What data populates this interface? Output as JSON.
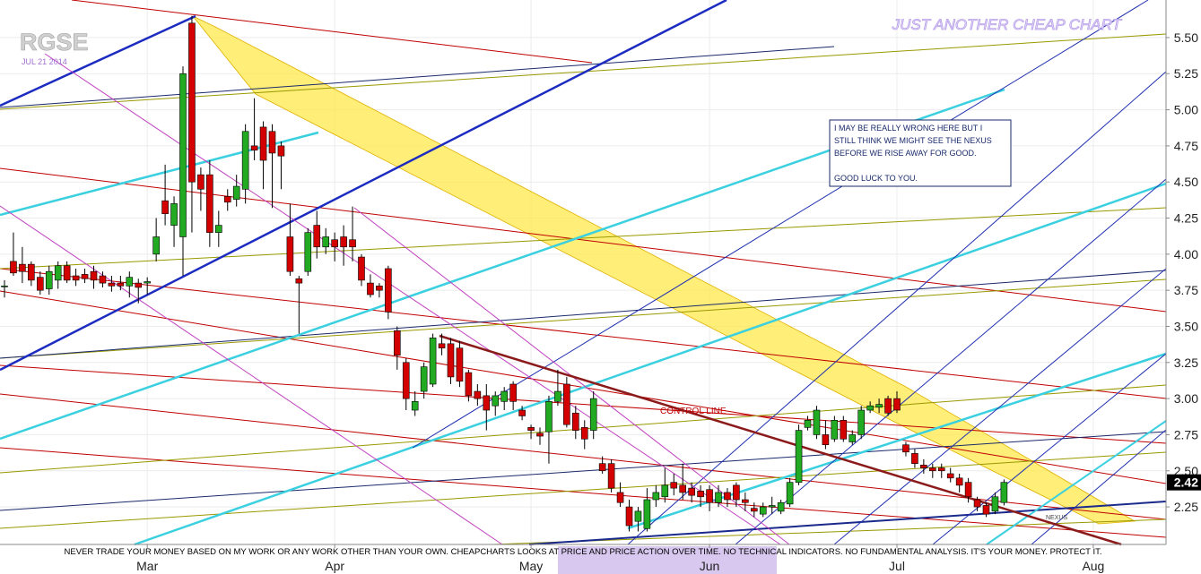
{
  "chart_data": {
    "type": "candlestick",
    "title": "RGSE",
    "subtitle": "JUL 21 2014",
    "watermark": "JUST ANOTHER CHEAP CHART",
    "up_color": "#22aa22",
    "down_color": "#d40000",
    "open": [
      3.78,
      3.95,
      3.93,
      3.93,
      3.84,
      3.76,
      3.82,
      3.92,
      3.85,
      3.86,
      3.88,
      3.85,
      3.8,
      3.8,
      3.78,
      3.8,
      3.8,
      4.0,
      4.37,
      4.2,
      4.12,
      5.6,
      4.55,
      4.55,
      4.15,
      4.4,
      4.38,
      4.45,
      4.75,
      4.88,
      4.85,
      4.75,
      4.12,
      3.83,
      3.88,
      4.2,
      4.05,
      4.1,
      4.12,
      4.1,
      3.98,
      3.8,
      3.78,
      3.9,
      3.47,
      3.25,
      2.92,
      3.05,
      3.1,
      3.38,
      3.38,
      3.35,
      3.18,
      3.05,
      3.02,
      2.95,
      2.98,
      3.1,
      2.92,
      2.8,
      2.76,
      2.77,
      2.98,
      3.1,
      2.9,
      2.8,
      2.78,
      2.55,
      2.55,
      2.35,
      2.25,
      2.15,
      2.1,
      2.3,
      2.32,
      2.42,
      2.4,
      2.38,
      2.36,
      2.37,
      2.28,
      2.35,
      2.4,
      2.3,
      2.24,
      2.2,
      2.25,
      2.22,
      2.27,
      2.42,
      2.8,
      2.75,
      2.75,
      2.72,
      2.85,
      2.7,
      2.75,
      2.92,
      2.94,
      3.0,
      3.0,
      2.68,
      2.62,
      2.54,
      2.52,
      2.52,
      2.48,
      2.45,
      2.42,
      2.3,
      2.26,
      2.22,
      2.28
    ],
    "high": [
      3.82,
      4.15,
      4.05,
      3.95,
      3.88,
      3.92,
      3.95,
      3.95,
      3.9,
      3.9,
      3.92,
      3.88,
      3.85,
      3.85,
      3.88,
      3.83,
      3.84,
      4.25,
      4.62,
      4.4,
      5.3,
      5.65,
      4.6,
      4.65,
      4.3,
      4.45,
      4.55,
      4.9,
      5.08,
      4.92,
      4.9,
      4.78,
      4.35,
      3.85,
      4.18,
      4.3,
      4.18,
      4.15,
      4.2,
      4.33,
      4.0,
      3.86,
      3.8,
      3.92,
      3.5,
      3.28,
      3.05,
      3.25,
      3.45,
      3.45,
      3.42,
      3.4,
      3.2,
      3.1,
      3.1,
      3.05,
      3.08,
      3.12,
      2.95,
      2.82,
      2.8,
      3.02,
      3.2,
      3.15,
      2.95,
      2.85,
      3.05,
      2.6,
      2.58,
      2.42,
      2.3,
      2.25,
      2.38,
      2.4,
      2.52,
      2.48,
      2.55,
      2.42,
      2.4,
      2.4,
      2.4,
      2.38,
      2.42,
      2.35,
      2.28,
      2.28,
      2.32,
      2.3,
      2.45,
      2.82,
      2.88,
      2.95,
      2.85,
      2.88,
      2.88,
      2.78,
      2.95,
      2.98,
      3.0,
      3.02,
      3.05,
      2.7,
      2.65,
      2.58,
      2.55,
      2.55,
      2.52,
      2.48,
      2.45,
      2.32,
      2.28,
      2.35,
      2.44
    ],
    "low": [
      3.7,
      3.85,
      3.8,
      3.78,
      3.72,
      3.72,
      3.76,
      3.8,
      3.78,
      3.8,
      3.76,
      3.77,
      3.74,
      3.75,
      3.7,
      3.66,
      3.72,
      3.95,
      4.2,
      4.05,
      3.85,
      4.15,
      4.3,
      4.05,
      4.05,
      4.3,
      4.33,
      4.35,
      4.65,
      4.45,
      4.32,
      4.45,
      3.85,
      3.45,
      3.85,
      3.97,
      4.0,
      3.95,
      3.92,
      3.95,
      3.78,
      3.7,
      3.7,
      3.55,
      3.2,
      2.92,
      2.88,
      3.0,
      3.08,
      3.3,
      3.1,
      3.08,
      2.98,
      2.95,
      2.78,
      2.88,
      2.92,
      2.92,
      2.85,
      2.72,
      2.68,
      2.55,
      2.95,
      2.8,
      2.72,
      2.65,
      2.72,
      2.48,
      2.35,
      2.25,
      2.08,
      2.08,
      2.08,
      2.25,
      2.28,
      2.33,
      2.3,
      2.28,
      2.25,
      2.22,
      2.25,
      2.25,
      2.25,
      2.22,
      2.18,
      2.18,
      2.2,
      2.2,
      2.25,
      2.4,
      2.78,
      2.72,
      2.65,
      2.7,
      2.7,
      2.68,
      2.72,
      2.9,
      2.9,
      2.88,
      2.9,
      2.6,
      2.52,
      2.48,
      2.45,
      2.45,
      2.42,
      2.35,
      2.28,
      2.22,
      2.18,
      2.2,
      2.26
    ],
    "close": [
      3.78,
      3.87,
      3.88,
      3.82,
      3.75,
      3.88,
      3.92,
      3.82,
      3.82,
      3.83,
      3.82,
      3.8,
      3.78,
      3.78,
      3.84,
      3.77,
      3.81,
      4.12,
      4.28,
      4.35,
      5.25,
      4.5,
      4.45,
      4.15,
      4.2,
      4.36,
      4.47,
      4.85,
      4.72,
      4.65,
      4.7,
      4.68,
      3.88,
      3.8,
      4.15,
      4.05,
      4.12,
      4.05,
      4.05,
      4.05,
      3.82,
      3.72,
      3.75,
      3.6,
      3.3,
      3.0,
      2.98,
      3.22,
      3.42,
      3.35,
      3.15,
      3.12,
      3.02,
      3.0,
      2.92,
      3.02,
      3.05,
      2.98,
      2.88,
      2.78,
      2.74,
      2.98,
      3.05,
      2.82,
      2.78,
      2.72,
      3.0,
      2.5,
      2.38,
      2.28,
      2.12,
      2.22,
      2.3,
      2.35,
      2.4,
      2.38,
      2.35,
      2.33,
      2.32,
      2.28,
      2.35,
      2.3,
      2.3,
      2.28,
      2.22,
      2.25,
      2.26,
      2.28,
      2.42,
      2.78,
      2.85,
      2.92,
      2.68,
      2.85,
      2.72,
      2.75,
      2.92,
      2.95,
      2.96,
      2.9,
      2.92,
      2.63,
      2.55,
      2.52,
      2.5,
      2.5,
      2.45,
      2.4,
      2.32,
      2.25,
      2.2,
      2.32,
      2.42
    ],
    "ylim": [
      1.99,
      5.76
    ],
    "yticks": [
      {
        "value": 2.25,
        "label": "2.25"
      },
      {
        "value": 2.5,
        "label": "2.50"
      },
      {
        "value": 2.75,
        "label": "2.75"
      },
      {
        "value": 3,
        "label": "3.00"
      },
      {
        "value": 3.25,
        "label": "3.25"
      },
      {
        "value": 3.5,
        "label": "3.50"
      },
      {
        "value": 3.75,
        "label": "3.75"
      },
      {
        "value": 4,
        "label": "4.00"
      },
      {
        "value": 4.25,
        "label": "4.25"
      },
      {
        "value": 4.5,
        "label": "4.50"
      },
      {
        "value": 4.75,
        "label": "4.75"
      },
      {
        "value": 5,
        "label": "5.00"
      },
      {
        "value": 5.25,
        "label": "5.25"
      },
      {
        "value": 5.5,
        "label": "5.50"
      }
    ],
    "xticks": [
      {
        "value": 16,
        "label": "Mar"
      },
      {
        "value": 37,
        "label": "Apr"
      },
      {
        "value": 59,
        "label": "May"
      },
      {
        "value": 79,
        "label": "Jun"
      },
      {
        "value": 100,
        "label": "Jul"
      },
      {
        "value": 122,
        "label": "Aug"
      }
    ],
    "last_price": {
      "value": 2.42,
      "label": "2.42"
    },
    "grid": true,
    "note": [
      "I MAY BE REALLY WRONG HERE BUT I",
      "STILL THINK WE MIGHT SEE THE NEXUS",
      "BEFORE WE RISE AWAY FOR GOOD.",
      "GOOD LUCK TO YOU."
    ],
    "control_line_label": "CONTROL LINE",
    "nexus_label": "NEXUS",
    "disclaimer": "NEVER TRADE YOUR MONEY BASED ON MY WORK OR ANY WORK OTHER THAN YOUR OWN. CHEAPCHARTS LOOKS AT PRICE AND PRICE ACTION OVER TIME. NO TECHNICAL INDICATORS. NO FUNDAMENTAL ANALYSIS. IT'S YOUR MONEY. PROTECT IT."
  }
}
